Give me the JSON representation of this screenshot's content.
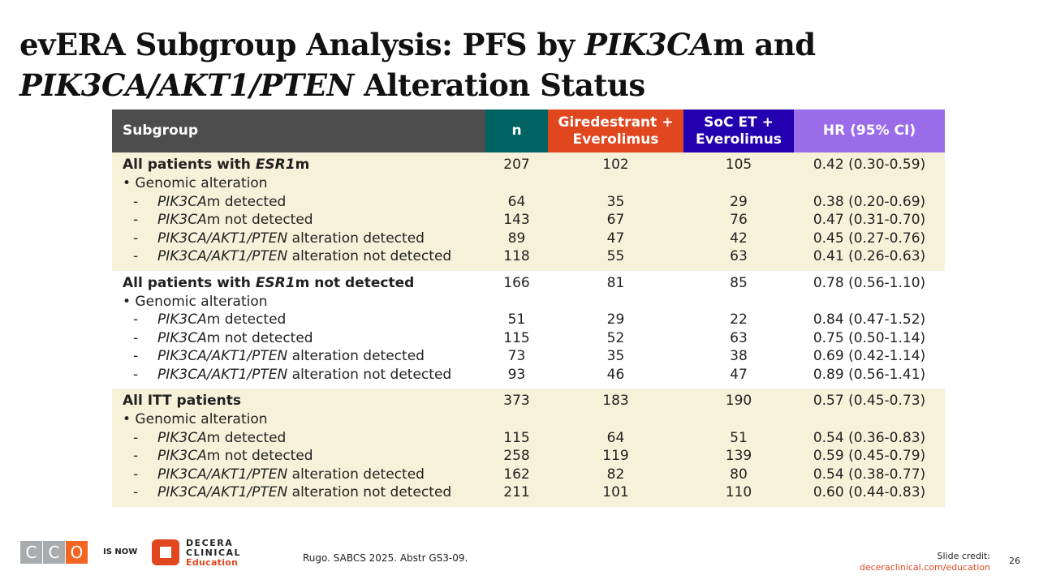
{
  "title": {
    "line1_a": "evERA Subgroup Analysis: PFS by ",
    "line1_b": "PIK3CA",
    "line1_c": "m and",
    "line2_a": "PIK3CA/AKT1/PTEN",
    "line2_b": " Alteration Status"
  },
  "header": {
    "subgroup": "Subgroup",
    "n": "n",
    "gired_1": "Giredestrant +",
    "gired_2": "Everolimus",
    "soc_1": "SoC ET +",
    "soc_2": "Everolimus",
    "hr": "HR (95% CI)"
  },
  "colors": {
    "n": "#006362",
    "gired": "#e0471f",
    "soc": "#2200b0",
    "hr": "#9b6cea",
    "cream": "#f8f1d9"
  },
  "sections": [
    {
      "head_a": "All patients with ",
      "head_it": "ESR1",
      "head_b": "m",
      "n": "207",
      "g": "102",
      "s": "105",
      "hr": "0.42 (0.30-0.59)",
      "bullet": "• Genomic alteration",
      "items": [
        {
          "it": "PIK3CA",
          "rest": "m detected",
          "n": "64",
          "g": "35",
          "s": "29",
          "hr": "0.38 (0.20-0.69)"
        },
        {
          "it": "PIK3CA",
          "rest": "m not detected",
          "n": "143",
          "g": "67",
          "s": "76",
          "hr": "0.47 (0.31-0.70)"
        },
        {
          "it": "PIK3CA/AKT1/PTEN",
          "rest": " alteration detected",
          "n": "89",
          "g": "47",
          "s": "42",
          "hr": "0.45 (0.27-0.76)"
        },
        {
          "it": "PIK3CA/AKT1/PTEN",
          "rest": " alteration not detected",
          "n": "118",
          "g": "55",
          "s": "63",
          "hr": "0.41 (0.26-0.63)"
        }
      ]
    },
    {
      "head_a": "All patients with ",
      "head_it": "ESR1",
      "head_b": "m not detected",
      "n": "166",
      "g": "81",
      "s": "85",
      "hr": "0.78 (0.56-1.10)",
      "bullet": "• Genomic alteration",
      "items": [
        {
          "it": "PIK3CA",
          "rest": "m detected",
          "n": "51",
          "g": "29",
          "s": "22",
          "hr": "0.84 (0.47-1.52)"
        },
        {
          "it": "PIK3CA",
          "rest": "m not detected",
          "n": "115",
          "g": "52",
          "s": "63",
          "hr": "0.75 (0.50-1.14)"
        },
        {
          "it": "PIK3CA/AKT1/PTEN",
          "rest": " alteration detected",
          "n": "73",
          "g": "35",
          "s": "38",
          "hr": "0.69 (0.42-1.14)"
        },
        {
          "it": "PIK3CA/AKT1/PTEN",
          "rest": " alteration not detected",
          "n": "93",
          "g": "46",
          "s": "47",
          "hr": "0.89 (0.56-1.41)"
        }
      ]
    },
    {
      "head_a": "All ITT patients",
      "head_it": "",
      "head_b": "",
      "n": "373",
      "g": "183",
      "s": "190",
      "hr": "0.57 (0.45-0.73)",
      "bullet": "• Genomic alteration",
      "items": [
        {
          "it": "PIK3CA",
          "rest": "m detected",
          "n": "115",
          "g": "64",
          "s": "51",
          "hr": "0.54 (0.36-0.83)"
        },
        {
          "it": "PIK3CA",
          "rest": "m not detected",
          "n": "258",
          "g": "119",
          "s": "139",
          "hr": "0.59 (0.45-0.79)"
        },
        {
          "it": "PIK3CA/AKT1/PTEN",
          "rest": " alteration detected",
          "n": "162",
          "g": "82",
          "s": "80",
          "hr": "0.54 (0.38-0.77)"
        },
        {
          "it": "PIK3CA/AKT1/PTEN",
          "rest": " alteration not detected",
          "n": "211",
          "g": "101",
          "s": "110",
          "hr": "0.60 (0.44-0.83)"
        }
      ]
    }
  ],
  "dash": "-",
  "footer": {
    "cco_letters": [
      "C",
      "C",
      "O"
    ],
    "is_now": "IS NOW",
    "decera_1": "DECERA",
    "decera_2": "CLINICAL",
    "decera_3": "Education",
    "citation": "Rugo. SABCS 2025. Abstr GS3-09.",
    "credit_label": "Slide credit:",
    "credit_link": "deceraclinical.com/education",
    "page": "26"
  }
}
